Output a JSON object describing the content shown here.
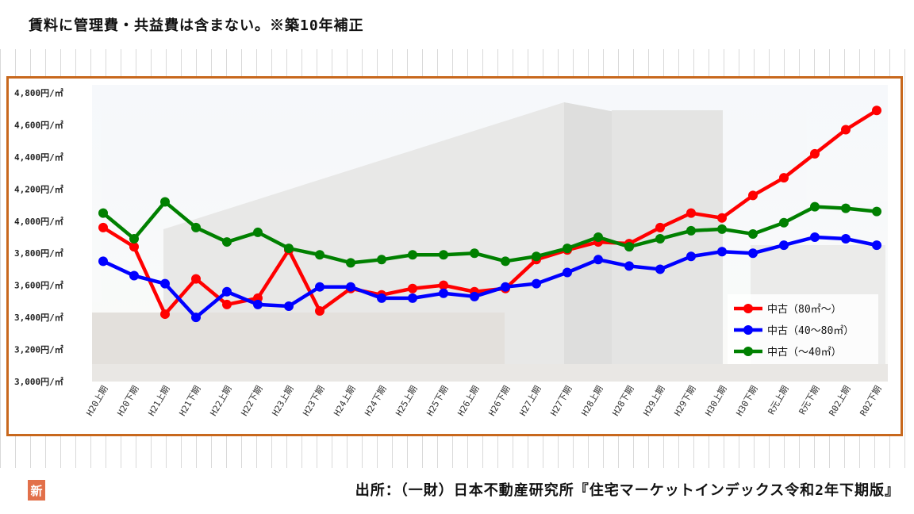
{
  "header": {
    "note": "賃料に管理費・共益費は含まない。※築10年補正"
  },
  "footer": {
    "source": "出所：（一財）日本不動産研究所『住宅マーケットインデックス令和2年下期版』"
  },
  "logo": {
    "text": "新"
  },
  "colors": {
    "frame": "#c8681d",
    "series_80": "#ff0000",
    "series_40_80": "#0000ff",
    "series_40": "#008000"
  },
  "chart_data": {
    "type": "line",
    "categories": [
      "H20上期",
      "H20下期",
      "H21上期",
      "H21下期",
      "H22上期",
      "H22下期",
      "H23上期",
      "H23下期",
      "H24上期",
      "H24下期",
      "H25上期",
      "H25下期",
      "H26上期",
      "H26下期",
      "H27上期",
      "H27下期",
      "H28上期",
      "H28下期",
      "H29上期",
      "H29下期",
      "H30上期",
      "H30下期",
      "R元上期",
      "R元下期",
      "R02上期",
      "R02下期"
    ],
    "series": [
      {
        "name": "中古（80㎡～）",
        "color": "#ff0000",
        "values": [
          3960,
          3840,
          3420,
          3640,
          3480,
          3520,
          3820,
          3440,
          3580,
          3540,
          3580,
          3600,
          3560,
          3580,
          3760,
          3820,
          3870,
          3860,
          3960,
          4050,
          4020,
          4160,
          4270,
          4420,
          4570,
          4690
        ]
      },
      {
        "name": "中古（40～80㎡）",
        "color": "#0000ff",
        "values": [
          3750,
          3660,
          3610,
          3400,
          3560,
          3480,
          3470,
          3590,
          3590,
          3520,
          3520,
          3550,
          3530,
          3590,
          3610,
          3680,
          3760,
          3720,
          3700,
          3780,
          3810,
          3800,
          3850,
          3900,
          3890,
          3850
        ]
      },
      {
        "name": "中古（～40㎡）",
        "color": "#008000",
        "values": [
          4050,
          3890,
          4120,
          3960,
          3870,
          3930,
          3830,
          3790,
          3740,
          3760,
          3790,
          3790,
          3800,
          3750,
          3780,
          3830,
          3900,
          3840,
          3890,
          3940,
          3950,
          3920,
          3990,
          4090,
          4080,
          4060
        ]
      }
    ],
    "y_ticks": [
      "4,800円/㎡",
      "4,600円/㎡",
      "4,400円/㎡",
      "4,200円/㎡",
      "4,000円/㎡",
      "3,800円/㎡",
      "3,600円/㎡",
      "3,400円/㎡",
      "3,200円/㎡",
      "3,000円/㎡"
    ],
    "ylim": [
      3000,
      4800
    ],
    "legend_position": "right"
  }
}
